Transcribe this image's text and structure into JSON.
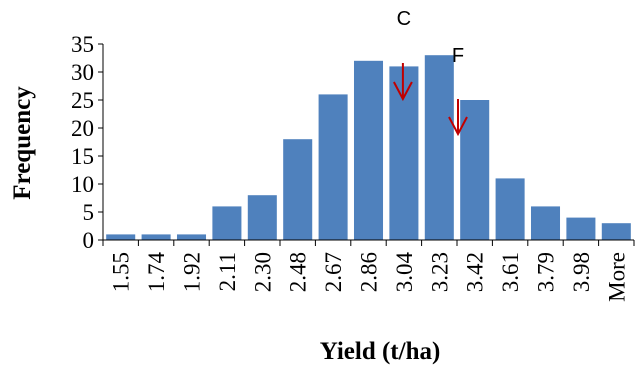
{
  "chart_data": {
    "type": "bar",
    "title": "",
    "xlabel": "Yield (t/ha)",
    "ylabel": "Frequency",
    "categories": [
      "1.55",
      "1.74",
      "1.92",
      "2.11",
      "2.30",
      "2.48",
      "2.67",
      "2.86",
      "3.04",
      "3.23",
      "3.42",
      "3.61",
      "3.79",
      "3.98",
      "More"
    ],
    "values": [
      1,
      1,
      1,
      6,
      8,
      18,
      26,
      32,
      31,
      33,
      25,
      11,
      6,
      4,
      3
    ],
    "ylim": [
      0,
      35
    ],
    "yticks": [
      0,
      5,
      10,
      15,
      20,
      25,
      30,
      35
    ],
    "grid": false,
    "legend": "none",
    "bar_color": "#4F81BD",
    "annotations": [
      {
        "label": "C",
        "arrow_color": "#C00000",
        "x_category": "3.04"
      },
      {
        "label": "F",
        "arrow_color": "#C00000",
        "x_category": "3.23"
      }
    ]
  }
}
